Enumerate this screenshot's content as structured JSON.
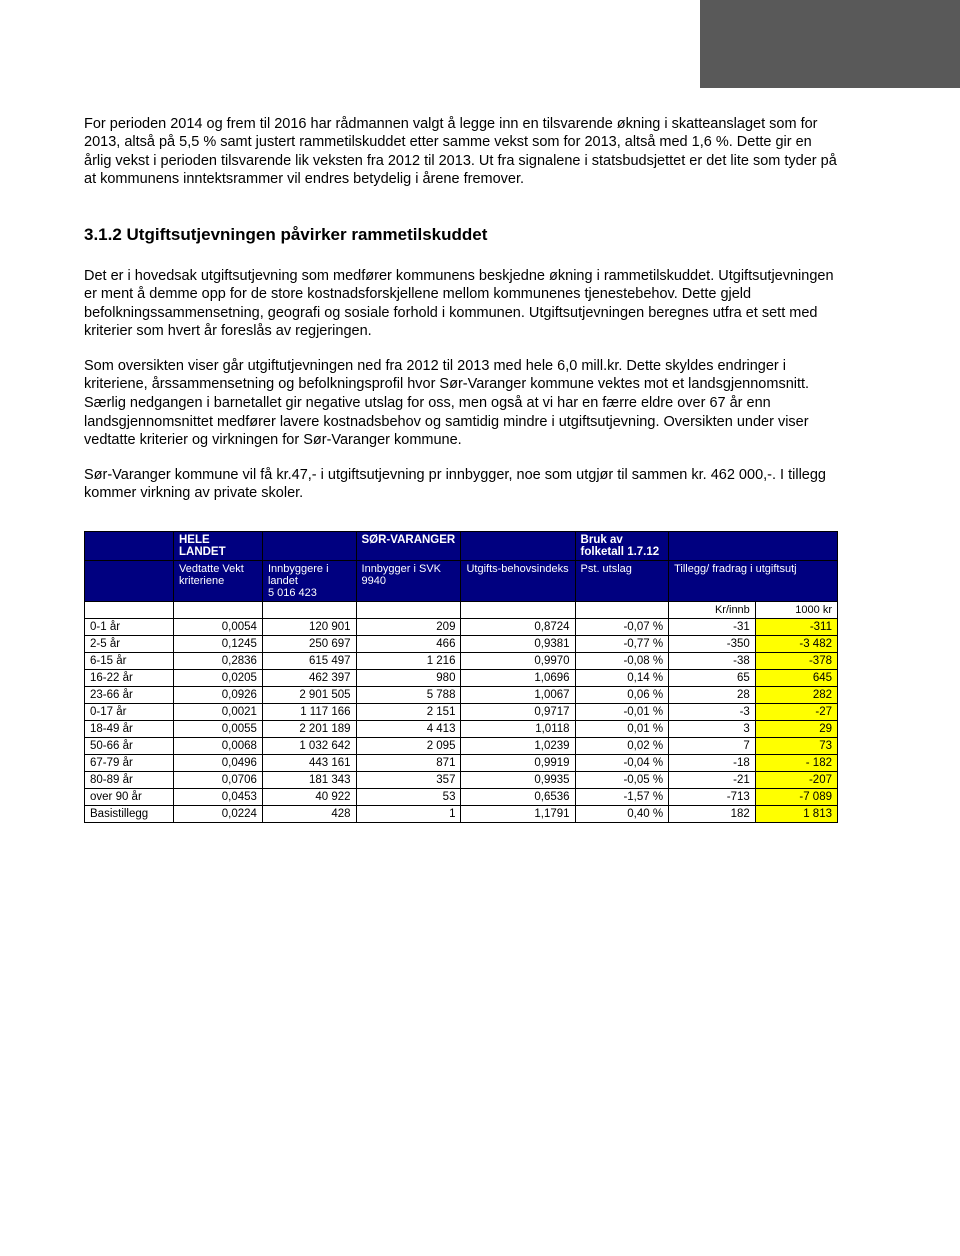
{
  "paragraphs": {
    "p1": "For perioden 2014 og frem til 2016 har rådmannen valgt å legge inn en tilsvarende økning i skatteanslaget som for 2013, altså på 5,5 % samt justert rammetilskuddet etter samme vekst som for 2013, altså med 1,6 %. Dette gir en årlig vekst i perioden tilsvarende lik veksten fra 2012 til 2013. Ut fra signalene i statsbudsjettet er det lite som tyder på at kommunens inntektsrammer vil endres betydelig i årene fremover.",
    "heading": "3.1.2 Utgiftsutjevningen påvirker rammetilskuddet",
    "p2": "Det er i hovedsak utgiftsutjevning som medfører kommunens beskjedne økning i rammetilskuddet. Utgiftsutjevningen er ment å demme opp for de store kostnadsforskjellene mellom kommunenes tjenestebehov. Dette gjeld befolkningssammensetning, geografi og sosiale forhold i kommunen. Utgiftsutjevningen beregnes utfra et sett med kriterier som hvert år foreslås av regjeringen.",
    "p3": "Som oversikten viser går utgiftutjevningen ned fra 2012 til 2013 med hele 6,0 mill.kr. Dette skyldes endringer i kriteriene, årssammensetning og befolkningsprofil hvor Sør-Varanger kommune vektes mot et landsgjennomsnitt. Særlig nedgangen i barnetallet gir negative utslag for oss, men også at vi har en færre eldre over 67 år enn landsgjennomsnittet medfører lavere kostnadsbehov og samtidig mindre i utgiftsutjevning. Oversikten under viser vedtatte kriterier og virkningen for Sør-Varanger kommune.",
    "p4": "Sør-Varanger kommune vil få kr.47,- i utgiftsutjevning pr innbygger, noe som utgjør til sammen kr. 462 000,-. I tillegg kommer virkning av private skoler."
  },
  "table": {
    "hdr1": {
      "col2": "HELE LANDET",
      "col4": "SØR-VARANGER",
      "col6": "Bruk av folketall 1.7.12"
    },
    "hdr2": {
      "col2": "Vedtatte Vekt kriteriene",
      "col3a": "Innbyggere i landet",
      "col3b": "5 016 423",
      "col4a": "Innbygger i SVK",
      "col4b": "9940",
      "col5": "Utgifts-behovsindeks",
      "col6": "Pst. utslag",
      "col7": "Tillegg/ fradrag i utgiftsutj"
    },
    "unit": {
      "c7": "Kr/innb",
      "c8": "1000 kr"
    },
    "rows": [
      {
        "label": "0-1 år",
        "c2": "0,0054",
        "c3": "120 901",
        "c4": "209",
        "c5": "0,8724",
        "c6": "-0,07 %",
        "c7": "-31",
        "c8": "-311"
      },
      {
        "label": "2-5 år",
        "c2": "0,1245",
        "c3": "250 697",
        "c4": "466",
        "c5": "0,9381",
        "c6": "-0,77 %",
        "c7": "-350",
        "c8": "-3 482"
      },
      {
        "label": "6-15 år",
        "c2": "0,2836",
        "c3": "615 497",
        "c4": "1 216",
        "c5": "0,9970",
        "c6": "-0,08 %",
        "c7": "-38",
        "c8": "-378"
      },
      {
        "label": "16-22 år",
        "c2": "0,0205",
        "c3": "462 397",
        "c4": "980",
        "c5": "1,0696",
        "c6": "0,14 %",
        "c7": "65",
        "c8": "645"
      },
      {
        "label": "23-66 år",
        "c2": "0,0926",
        "c3": "2 901 505",
        "c4": "5 788",
        "c5": "1,0067",
        "c6": "0,06 %",
        "c7": "28",
        "c8": "282"
      },
      {
        "label": "0-17 år",
        "c2": "0,0021",
        "c3": "1 117 166",
        "c4": "2 151",
        "c5": "0,9717",
        "c6": "-0,01 %",
        "c7": "-3",
        "c8": "-27"
      },
      {
        "label": "18-49 år",
        "c2": "0,0055",
        "c3": "2 201 189",
        "c4": "4 413",
        "c5": "1,0118",
        "c6": "0,01 %",
        "c7": "3",
        "c8": "29"
      },
      {
        "label": "50-66 år",
        "c2": "0,0068",
        "c3": "1 032 642",
        "c4": "2 095",
        "c5": "1,0239",
        "c6": "0,02 %",
        "c7": "7",
        "c8": "73"
      },
      {
        "label": "67-79 år",
        "c2": "0,0496",
        "c3": "443 161",
        "c4": "871",
        "c5": "0,9919",
        "c6": "-0,04 %",
        "c7": "-18",
        "c8": "- 182"
      },
      {
        "label": "80-89 år",
        "c2": "0,0706",
        "c3": "181 343",
        "c4": "357",
        "c5": "0,9935",
        "c6": "-0,05 %",
        "c7": "-21",
        "c8": "-207"
      },
      {
        "label": "over 90 år",
        "c2": "0,0453",
        "c3": "40 922",
        "c4": "53",
        "c5": "0,6536",
        "c6": "-1,57 %",
        "c7": "-713",
        "c8": "-7 089"
      },
      {
        "label": "Basistillegg",
        "c2": "0,0224",
        "c3": "428",
        "c4": "1",
        "c5": "1,1791",
        "c6": "0,40 %",
        "c7": "182",
        "c8": "1 813"
      }
    ]
  }
}
